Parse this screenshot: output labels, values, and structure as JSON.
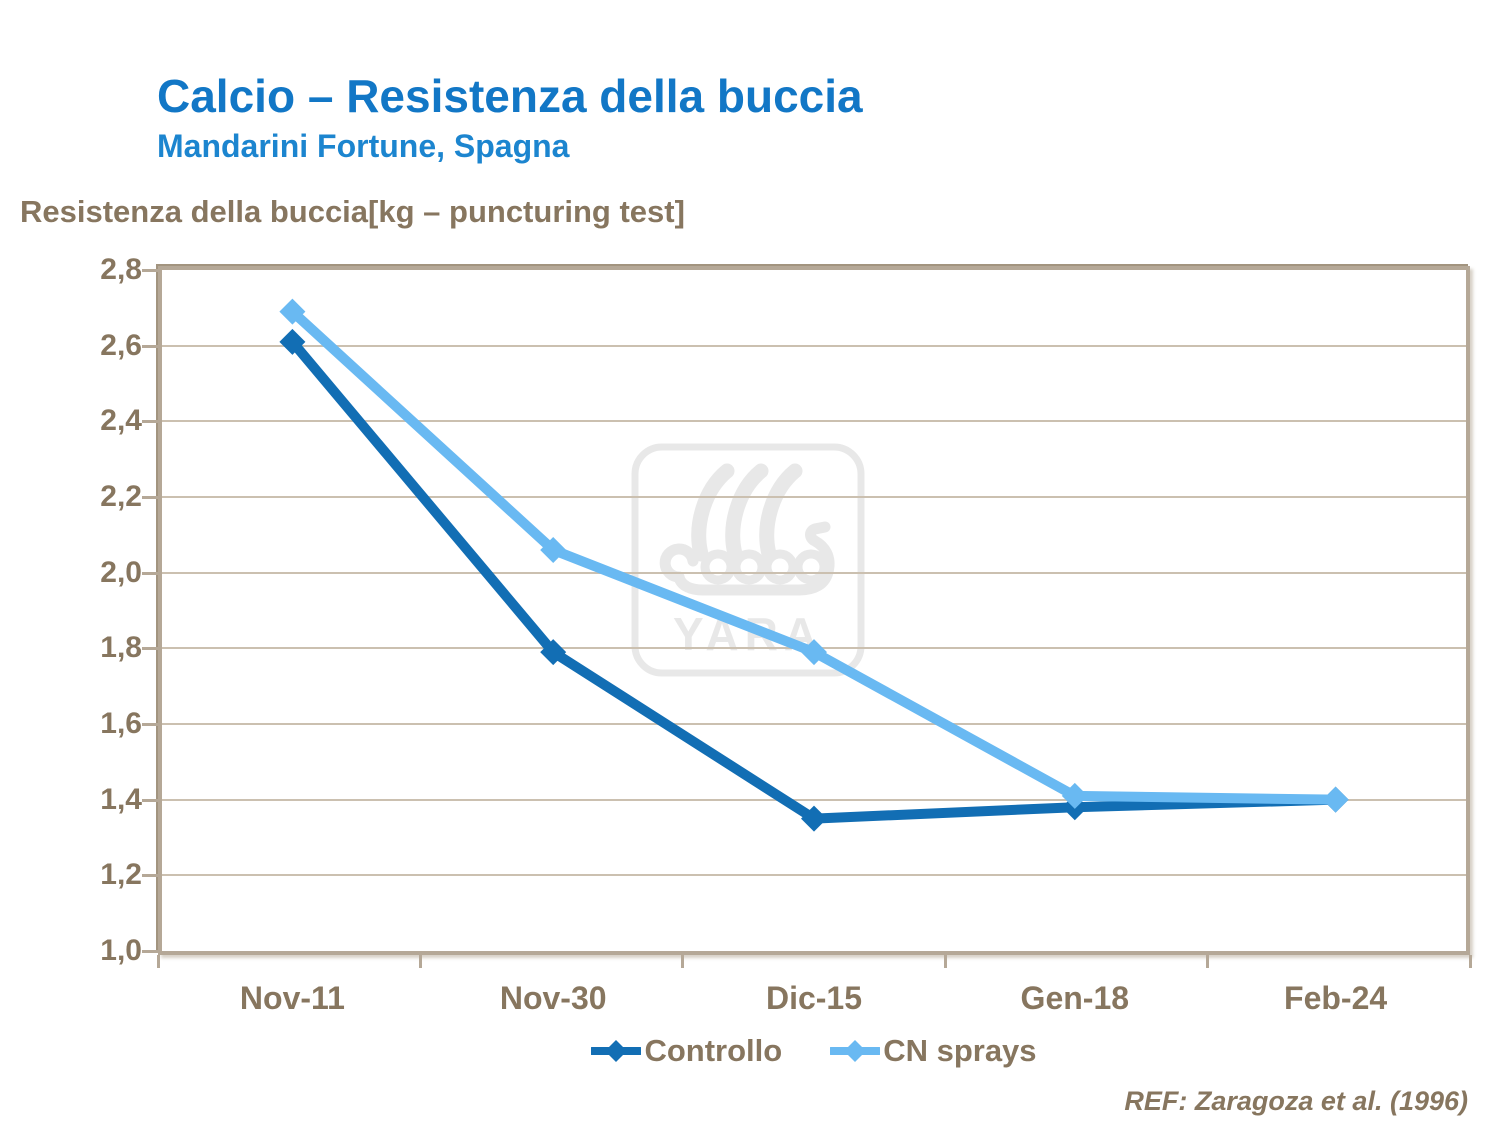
{
  "footer": {
    "reference": "REF: Zaragoza et al. (1996)"
  },
  "watermark": {
    "text": "YARA"
  },
  "colors": {
    "title_blue": "#1277C6",
    "subtitle_blue": "#1C85CF",
    "axis_text_brown": "#87765F",
    "gridline_taupe": "#CBC0B0",
    "plot_border_taupe": "#B5A897",
    "controllo_blue": "#126EB4",
    "cn_sprays_blue": "#69B9F2",
    "watermark_gray": "#E8E8E8"
  },
  "chart_data": {
    "type": "line",
    "title": "Calcio – Resistenza della buccia",
    "subtitle": "Mandarini Fortune, Spagna",
    "ylabel": "Resistenza della buccia[kg – puncturing test]",
    "categories": [
      "Nov-11",
      "Nov-30",
      "Dic-15",
      "Gen-18",
      "Feb-24"
    ],
    "series": [
      {
        "name": "Controllo",
        "color": "#126EB4",
        "values": [
          2.61,
          1.79,
          1.35,
          1.38,
          1.4
        ]
      },
      {
        "name": "CN sprays",
        "color": "#69B9F2",
        "values": [
          2.69,
          2.06,
          1.79,
          1.41,
          1.4
        ]
      }
    ],
    "ylim": [
      1.0,
      2.8
    ],
    "ytick_step": 0.2,
    "ytick_labels": [
      "2,8",
      "2,6",
      "2,4",
      "2,2",
      "2,0",
      "1,8",
      "1,6",
      "1,4",
      "1,2",
      "1,0"
    ],
    "decimal_separator": ",",
    "grid": true,
    "legend_position": "bottom",
    "marker": "diamond"
  }
}
